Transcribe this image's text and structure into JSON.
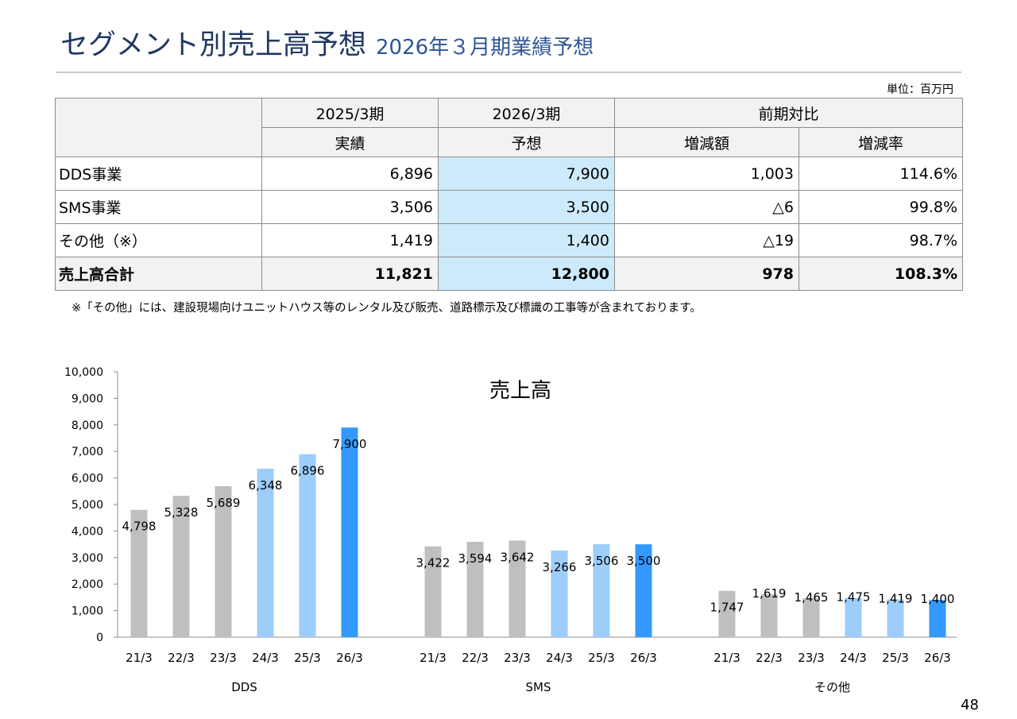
{
  "header": {
    "title": "セグメント別売上高予想",
    "subtitle": "2026年３月期業績予想"
  },
  "unit_note": "単位：百万円",
  "table": {
    "group_headers": [
      "2025/3期",
      "2026/3期",
      "前期対比"
    ],
    "sub_headers": [
      "実績",
      "予想",
      "増減額",
      "増減率"
    ],
    "rows": [
      {
        "label": "DDS事業",
        "actual": "6,896",
        "forecast": "7,900",
        "change": "1,003",
        "rate": "114.6%"
      },
      {
        "label": "SMS事業",
        "actual": "3,506",
        "forecast": "3,500",
        "change": "△6",
        "rate": "99.8%"
      },
      {
        "label": "その他（※）",
        "actual": "1,419",
        "forecast": "1,400",
        "change": "△19",
        "rate": "98.7%"
      }
    ],
    "total": {
      "label": "売上高合計",
      "actual": "11,821",
      "forecast": "12,800",
      "change": "978",
      "rate": "108.3%"
    }
  },
  "footnote": "※「その他」には、建設現場向けユニットハウス等のレンタル及び販売、道路標示及び標識の工事等が含まれております。",
  "chart_data": {
    "type": "bar",
    "title": "売上高",
    "ylim": [
      0,
      10000
    ],
    "yticks": [
      0,
      1000,
      2000,
      3000,
      4000,
      5000,
      6000,
      7000,
      8000,
      9000,
      10000
    ],
    "ytick_labels": [
      "0",
      "1,000",
      "2,000",
      "3,000",
      "4,000",
      "5,000",
      "6,000",
      "7,000",
      "8,000",
      "9,000",
      "10,000"
    ],
    "categories": [
      "21/3",
      "22/3",
      "23/3",
      "24/3",
      "25/3",
      "26/3"
    ],
    "groups": [
      {
        "name": "DDS",
        "values": [
          4798,
          5328,
          5689,
          6348,
          6896,
          7900
        ],
        "labels": [
          "4,798",
          "5,328",
          "5,689",
          "6,348",
          "6,896",
          "7,900"
        ]
      },
      {
        "name": "SMS",
        "values": [
          3422,
          3594,
          3642,
          3266,
          3506,
          3500
        ],
        "labels": [
          "3,422",
          "3,594",
          "3,642",
          "3,266",
          "3,506",
          "3,500"
        ]
      },
      {
        "name": "その他",
        "values": [
          1747,
          1619,
          1465,
          1475,
          1419,
          1400
        ],
        "labels": [
          "1,747",
          "1,619",
          "1,465",
          "1,475",
          "1,419",
          "1,400"
        ]
      }
    ],
    "bar_colors": [
      "#bfbfbf",
      "#bfbfbf",
      "#bfbfbf",
      "#9dcdfb",
      "#9dcdfb",
      "#3399ff"
    ],
    "grid": false,
    "legend": "none"
  },
  "page_number": "48"
}
